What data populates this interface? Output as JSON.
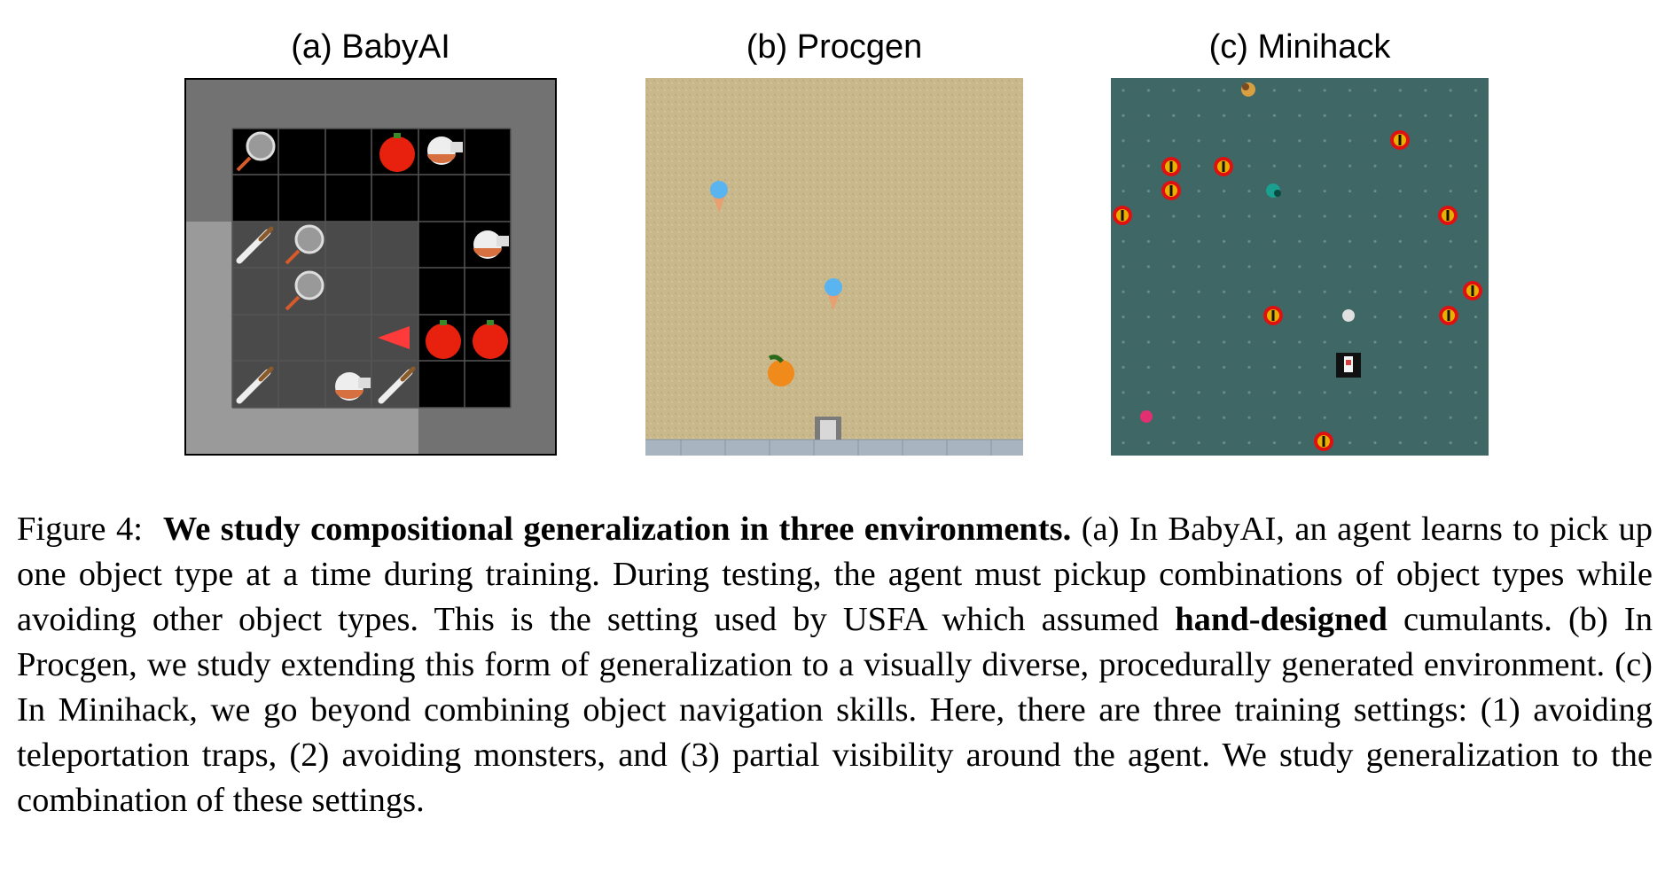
{
  "panels": {
    "a": {
      "title": "(a) BabyAI",
      "icons": [
        "pan-icon",
        "tomato-icon",
        "noodle-bowl-icon",
        "knife-icon",
        "agent-triangle-icon"
      ]
    },
    "b": {
      "title": "(b) Procgen",
      "icons": [
        "ice-cream-icon",
        "orange-icon",
        "robot-agent-icon"
      ]
    },
    "c": {
      "title": "(c) Minihack",
      "icons": [
        "teleport-trap-icon",
        "monster-icon",
        "agent-icon"
      ]
    }
  },
  "caption": {
    "label": "Figure 4:",
    "heading": "We study compositional generalization in three environments.",
    "part1": "(a) In BabyAI, an agent learns to pick up one object type at a time during training. During testing, the agent must pickup combinations of object types while avoiding other object types. This is the setting used by USFA which assumed",
    "emphasis": "hand-designed",
    "part2": "cumulants. (b) In Procgen, we study extending this form of generalization to a visually diverse, procedurally generated environment. (c) In Minihack, we go beyond combining object navigation skills. Here, there are three training settings: (1) avoiding teleportation traps, (2) avoiding monsters, and (3) partial visibility around the agent. We study generalization to the combination of these settings."
  },
  "colors": {
    "babyai_wall": "#727272",
    "babyai_floor_dark": "#000000",
    "babyai_floor_lit": "#4a4a4a",
    "procgen_sand": "#c8b88c",
    "minihack_bg": "#3f6766"
  }
}
